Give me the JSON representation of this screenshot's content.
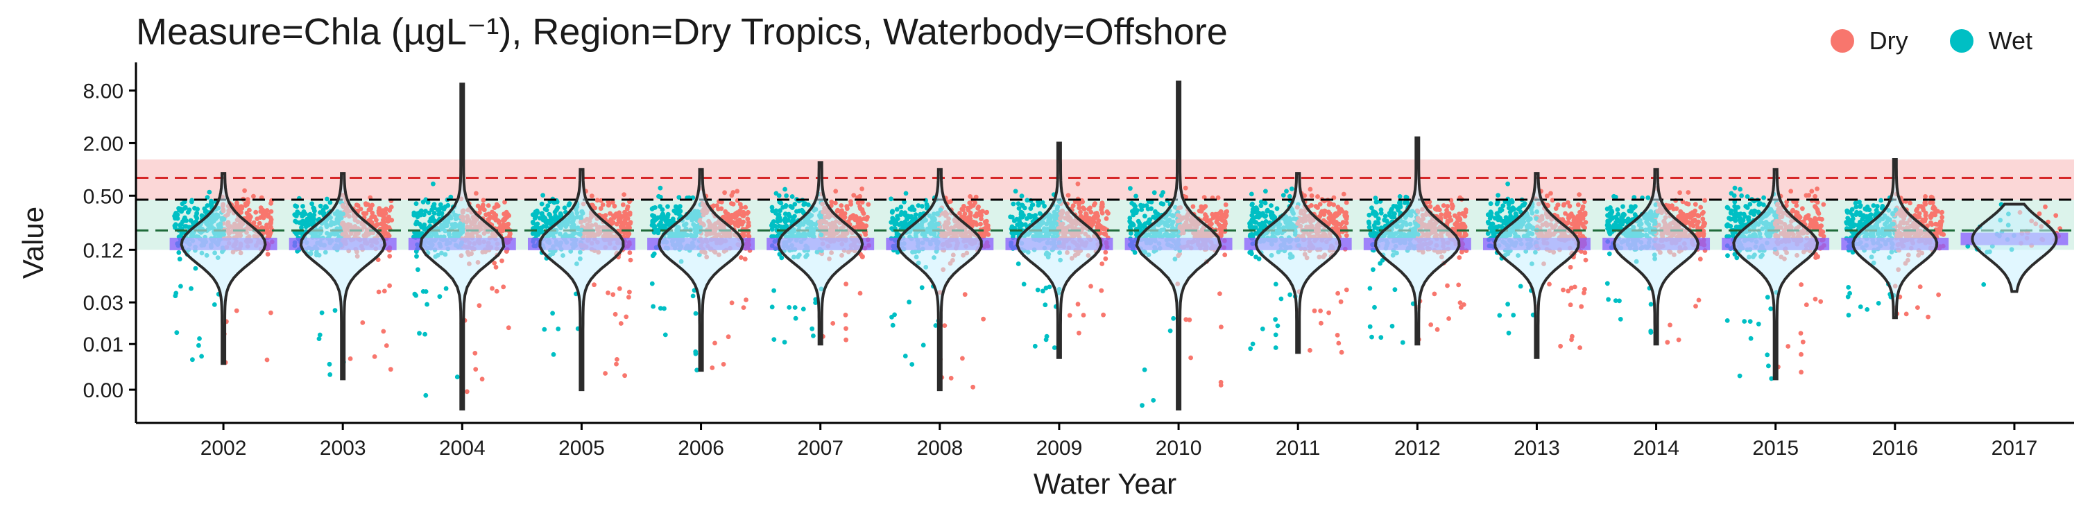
{
  "colors": {
    "dry": "#F8766D",
    "wet": "#00BFC4",
    "violin": "#2b2b2b",
    "violin_fill": "#c9f1ff",
    "mean_box": "#8a5cff",
    "band_red": "#f9c6c6",
    "band_green": "#cdeee3",
    "line_red": "#d62728",
    "line_black": "#000000",
    "line_green": "#1f6b3a"
  },
  "chart_data": {
    "type": "scatter",
    "title": "Measure=Chla (µgL⁻¹), Region=Dry Tropics, Waterbody=Offshore",
    "xlabel": "Water Year",
    "ylabel": "Value",
    "y_scale": "log",
    "y_ticks": [
      {
        "value": 0.003,
        "label": "0.00"
      },
      {
        "value": 0.01,
        "label": "0.01"
      },
      {
        "value": 0.03,
        "label": "0.03"
      },
      {
        "value": 0.12,
        "label": "0.12"
      },
      {
        "value": 0.5,
        "label": "0.50"
      },
      {
        "value": 2.0,
        "label": "2.00"
      },
      {
        "value": 8.0,
        "label": "8.00"
      }
    ],
    "ylim": [
      0.0015,
      14
    ],
    "categories": [
      "2002",
      "2003",
      "2004",
      "2005",
      "2006",
      "2007",
      "2008",
      "2009",
      "2010",
      "2011",
      "2012",
      "2013",
      "2014",
      "2015",
      "2016",
      "2017"
    ],
    "legend": [
      {
        "name": "Dry",
        "color_key": "dry"
      },
      {
        "name": "Wet",
        "color_key": "wet"
      }
    ],
    "legend_position": "top-right",
    "reference_bands": [
      {
        "from": 0.45,
        "to": 1.3,
        "color_key": "band_red"
      },
      {
        "from": 0.12,
        "to": 0.45,
        "color_key": "band_green"
      }
    ],
    "reference_lines": [
      {
        "y": 0.8,
        "color_key": "line_red",
        "style": "dashed"
      },
      {
        "y": 0.45,
        "color_key": "line_black",
        "style": "dashed"
      },
      {
        "y": 0.2,
        "color_key": "line_green",
        "style": "dashed"
      }
    ],
    "violins": [
      {
        "year": "2002",
        "min": 0.006,
        "max": 0.9,
        "median": 0.14
      },
      {
        "year": "2003",
        "min": 0.004,
        "max": 0.9,
        "median": 0.14
      },
      {
        "year": "2004",
        "min": 0.0018,
        "max": 9.5,
        "median": 0.14
      },
      {
        "year": "2005",
        "min": 0.003,
        "max": 1.0,
        "median": 0.14
      },
      {
        "year": "2006",
        "min": 0.005,
        "max": 1.0,
        "median": 0.14
      },
      {
        "year": "2007",
        "min": 0.01,
        "max": 1.2,
        "median": 0.14
      },
      {
        "year": "2008",
        "min": 0.003,
        "max": 1.0,
        "median": 0.14
      },
      {
        "year": "2009",
        "min": 0.007,
        "max": 2.0,
        "median": 0.14
      },
      {
        "year": "2010",
        "min": 0.0018,
        "max": 10.0,
        "median": 0.14
      },
      {
        "year": "2011",
        "min": 0.008,
        "max": 0.9,
        "median": 0.14
      },
      {
        "year": "2012",
        "min": 0.01,
        "max": 2.3,
        "median": 0.14
      },
      {
        "year": "2013",
        "min": 0.007,
        "max": 0.9,
        "median": 0.14
      },
      {
        "year": "2014",
        "min": 0.01,
        "max": 1.0,
        "median": 0.14
      },
      {
        "year": "2015",
        "min": 0.004,
        "max": 1.0,
        "median": 0.14
      },
      {
        "year": "2016",
        "min": 0.02,
        "max": 1.3,
        "median": 0.14
      },
      {
        "year": "2017",
        "min": 0.04,
        "max": 0.4,
        "median": 0.16
      }
    ],
    "points": {
      "dense_range_dry": [
        0.05,
        0.9
      ],
      "dense_range_wet": [
        0.04,
        0.9
      ]
    }
  }
}
